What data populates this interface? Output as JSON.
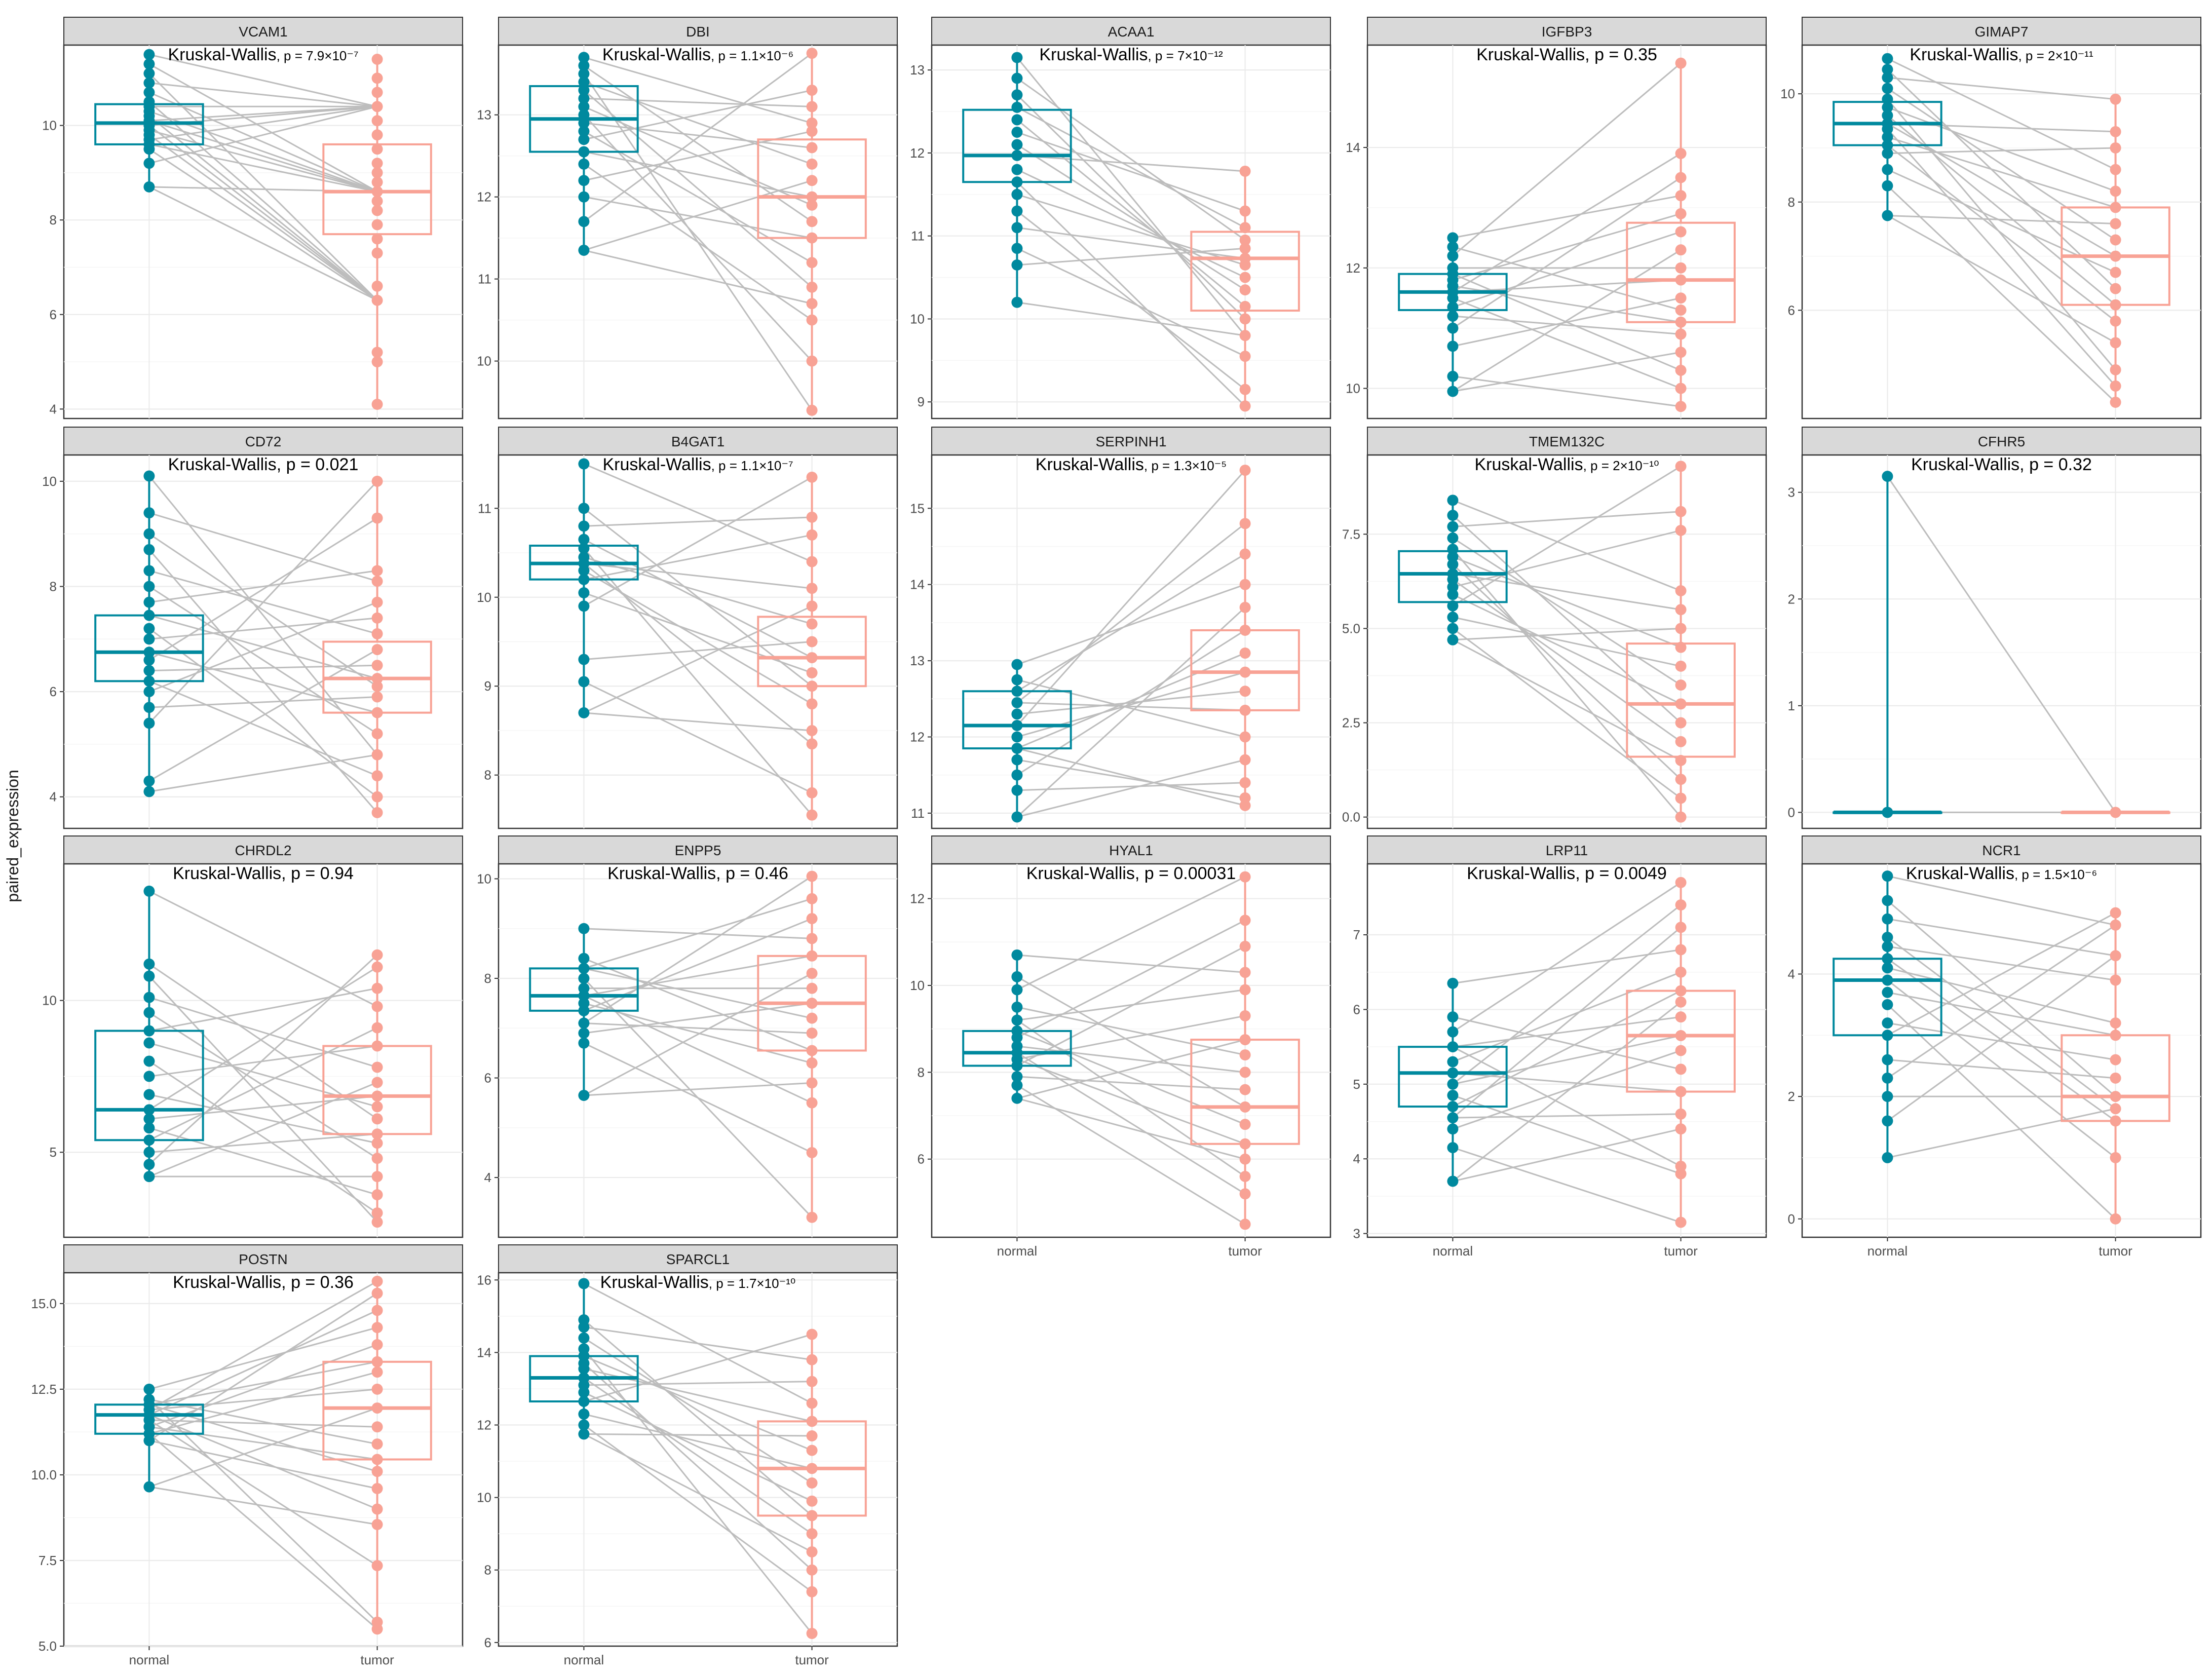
{
  "figure": {
    "y_axis_title": "paired_expression",
    "group_colors": {
      "normal": "#00899e",
      "tumor": "#f8a295"
    },
    "pair_line_color": "#bdbdbd",
    "test_name": "Kruskal-Wallis",
    "p_prefix": ", p = "
  },
  "chart_data": [
    {
      "type": "box",
      "gene": "VCAM1",
      "p_value": "7.9×10⁻⁷",
      "p_small": true,
      "ylim": [
        3.8,
        11.7
      ],
      "yticks": [
        4,
        6,
        8,
        10
      ],
      "categories": [
        "normal",
        "tumor"
      ],
      "normal": {
        "q1": 9.6,
        "median": 10.05,
        "q3": 10.45,
        "min": 8.7,
        "max": 11.5,
        "points": [
          8.7,
          9.2,
          9.5,
          9.6,
          9.7,
          9.8,
          9.9,
          10.0,
          10.0,
          10.1,
          10.2,
          10.3,
          10.4,
          10.5,
          10.7,
          10.9,
          11.1,
          11.3,
          11.5
        ]
      },
      "tumor": {
        "q1": 7.7,
        "median": 8.6,
        "q3": 9.6,
        "min": 4.1,
        "max": 11.4,
        "points": [
          4.1,
          5.0,
          5.2,
          6.3,
          6.6,
          7.3,
          7.6,
          7.9,
          8.2,
          8.4,
          8.6,
          8.8,
          9.0,
          9.2,
          9.5,
          9.8,
          10.1,
          10.4,
          10.7,
          11.0,
          11.4
        ]
      }
    },
    {
      "type": "box",
      "gene": "DBI",
      "p_value": "1.1×10⁻⁶",
      "p_small": true,
      "ylim": [
        9.3,
        13.85
      ],
      "yticks": [
        10,
        11,
        12,
        13
      ],
      "categories": [
        "normal",
        "tumor"
      ],
      "normal": {
        "q1": 12.55,
        "median": 12.95,
        "q3": 13.35,
        "min": 11.35,
        "max": 13.7,
        "points": [
          11.35,
          11.7,
          12.0,
          12.2,
          12.4,
          12.55,
          12.7,
          12.8,
          12.9,
          13.0,
          13.1,
          13.2,
          13.3,
          13.4,
          13.5,
          13.6,
          13.7
        ]
      },
      "tumor": {
        "q1": 11.5,
        "median": 12.0,
        "q3": 12.7,
        "min": 9.4,
        "max": 13.75,
        "points": [
          9.4,
          10.0,
          10.5,
          10.7,
          10.9,
          11.2,
          11.5,
          11.7,
          11.9,
          12.0,
          12.2,
          12.4,
          12.6,
          12.8,
          12.9,
          13.1,
          13.3,
          13.75
        ]
      }
    },
    {
      "type": "box",
      "gene": "ACAA1",
      "p_value": "7×10⁻¹²",
      "p_small": true,
      "ylim": [
        8.8,
        13.3
      ],
      "yticks": [
        9,
        10,
        11,
        12,
        13
      ],
      "categories": [
        "normal",
        "tumor"
      ],
      "normal": {
        "q1": 11.65,
        "median": 11.97,
        "q3": 12.52,
        "min": 10.2,
        "max": 13.15,
        "points": [
          10.2,
          10.65,
          10.85,
          11.1,
          11.3,
          11.5,
          11.65,
          11.8,
          11.97,
          12.1,
          12.25,
          12.4,
          12.55,
          12.7,
          12.9,
          13.15
        ]
      },
      "tumor": {
        "q1": 10.1,
        "median": 10.73,
        "q3": 11.05,
        "min": 8.95,
        "max": 11.78,
        "points": [
          8.95,
          9.15,
          9.55,
          9.8,
          10.0,
          10.15,
          10.35,
          10.5,
          10.65,
          10.73,
          10.85,
          10.95,
          11.1,
          11.3,
          11.78
        ]
      }
    },
    {
      "type": "box",
      "gene": "IGFBP3",
      "p_value": "0.35",
      "p_small": false,
      "ylim": [
        9.5,
        15.7
      ],
      "yticks": [
        10,
        12,
        14
      ],
      "categories": [
        "normal",
        "tumor"
      ],
      "normal": {
        "q1": 11.3,
        "median": 11.6,
        "q3": 11.9,
        "min": 9.95,
        "max": 12.5,
        "points": [
          9.95,
          10.2,
          10.7,
          11.0,
          11.2,
          11.35,
          11.5,
          11.6,
          11.7,
          11.8,
          11.9,
          12.0,
          12.2,
          12.35,
          12.5
        ]
      },
      "tumor": {
        "q1": 11.1,
        "median": 11.8,
        "q3": 12.75,
        "min": 9.7,
        "max": 15.4,
        "points": [
          9.7,
          10.0,
          10.3,
          10.6,
          10.9,
          11.1,
          11.3,
          11.5,
          11.8,
          12.0,
          12.3,
          12.6,
          12.9,
          13.2,
          13.5,
          13.9,
          15.4
        ]
      }
    },
    {
      "type": "box",
      "gene": "GIMAP7",
      "p_value": "2×10⁻¹¹",
      "p_small": true,
      "ylim": [
        4.0,
        10.9
      ],
      "yticks": [
        6,
        8,
        10
      ],
      "categories": [
        "normal",
        "tumor"
      ],
      "normal": {
        "q1": 9.05,
        "median": 9.45,
        "q3": 9.85,
        "min": 7.75,
        "max": 10.65,
        "points": [
          7.75,
          8.3,
          8.6,
          8.9,
          9.05,
          9.2,
          9.35,
          9.45,
          9.6,
          9.75,
          9.9,
          10.1,
          10.3,
          10.45,
          10.65
        ]
      },
      "tumor": {
        "q1": 6.1,
        "median": 7.0,
        "q3": 7.9,
        "min": 4.3,
        "max": 9.9,
        "points": [
          4.3,
          4.6,
          4.9,
          5.4,
          5.8,
          6.1,
          6.4,
          6.7,
          7.0,
          7.3,
          7.6,
          7.9,
          8.2,
          8.6,
          9.0,
          9.3,
          9.9
        ]
      }
    },
    {
      "type": "box",
      "gene": "CD72",
      "p_value": "0.021",
      "p_small": false,
      "ylim": [
        3.4,
        10.5
      ],
      "yticks": [
        4,
        6,
        8,
        10
      ],
      "categories": [
        "normal",
        "tumor"
      ],
      "normal": {
        "q1": 6.2,
        "median": 6.75,
        "q3": 7.45,
        "min": 4.1,
        "max": 10.1,
        "points": [
          4.1,
          4.3,
          5.4,
          5.7,
          6.0,
          6.2,
          6.4,
          6.6,
          6.75,
          7.0,
          7.2,
          7.45,
          7.7,
          8.0,
          8.3,
          8.7,
          9.0,
          9.4,
          10.1
        ]
      },
      "tumor": {
        "q1": 5.6,
        "median": 6.25,
        "q3": 6.95,
        "min": 3.7,
        "max": 10.0,
        "points": [
          3.7,
          4.0,
          4.4,
          4.8,
          5.2,
          5.6,
          5.9,
          6.1,
          6.25,
          6.5,
          6.8,
          7.1,
          7.4,
          7.7,
          8.1,
          8.3,
          9.3,
          10.0
        ]
      }
    },
    {
      "type": "box",
      "gene": "B4GAT1",
      "p_value": "1.1×10⁻⁷",
      "p_small": true,
      "ylim": [
        7.4,
        11.6
      ],
      "yticks": [
        8,
        9,
        10,
        11
      ],
      "categories": [
        "normal",
        "tumor"
      ],
      "normal": {
        "q1": 10.2,
        "median": 10.38,
        "q3": 10.58,
        "min": 8.7,
        "max": 11.5,
        "points": [
          8.7,
          9.05,
          9.3,
          9.9,
          10.05,
          10.2,
          10.3,
          10.38,
          10.45,
          10.55,
          10.65,
          10.8,
          11.0,
          11.5
        ]
      },
      "tumor": {
        "q1": 9.0,
        "median": 9.32,
        "q3": 9.78,
        "min": 7.55,
        "max": 11.35,
        "points": [
          7.55,
          7.8,
          8.35,
          8.5,
          8.8,
          9.0,
          9.15,
          9.32,
          9.5,
          9.7,
          9.9,
          10.1,
          10.4,
          10.7,
          10.9,
          11.35
        ]
      }
    },
    {
      "type": "box",
      "gene": "SERPINH1",
      "p_value": "1.3×10⁻⁵",
      "p_small": true,
      "ylim": [
        10.8,
        15.7
      ],
      "yticks": [
        11,
        12,
        13,
        14,
        15
      ],
      "categories": [
        "normal",
        "tumor"
      ],
      "normal": {
        "q1": 11.85,
        "median": 12.15,
        "q3": 12.6,
        "min": 10.95,
        "max": 12.95,
        "points": [
          10.95,
          11.3,
          11.5,
          11.7,
          11.85,
          12.0,
          12.15,
          12.3,
          12.45,
          12.6,
          12.75,
          12.95
        ]
      },
      "tumor": {
        "q1": 12.35,
        "median": 12.85,
        "q3": 13.4,
        "min": 11.1,
        "max": 15.5,
        "points": [
          11.1,
          11.2,
          11.4,
          11.7,
          12.0,
          12.35,
          12.6,
          12.85,
          13.1,
          13.4,
          13.7,
          14.0,
          14.4,
          14.8,
          15.5
        ]
      }
    },
    {
      "type": "box",
      "gene": "TMEM132C",
      "p_value": "2×10⁻¹⁰",
      "p_small": true,
      "ylim": [
        -0.3,
        9.6
      ],
      "yticks": [
        0.0,
        2.5,
        5.0,
        7.5
      ],
      "tick_decimals": 1,
      "categories": [
        "normal",
        "tumor"
      ],
      "normal": {
        "q1": 5.7,
        "median": 6.45,
        "q3": 7.05,
        "min": 4.7,
        "max": 8.4,
        "points": [
          4.7,
          5.0,
          5.3,
          5.6,
          5.9,
          6.1,
          6.3,
          6.45,
          6.7,
          6.9,
          7.1,
          7.4,
          7.7,
          8.0,
          8.4
        ]
      },
      "tumor": {
        "q1": 1.6,
        "median": 3.0,
        "q3": 4.6,
        "min": 0.0,
        "max": 9.3,
        "points": [
          0.0,
          0.5,
          1.0,
          1.5,
          2.0,
          2.5,
          3.0,
          3.5,
          4.0,
          4.5,
          5.0,
          5.5,
          6.0,
          7.6,
          8.1,
          9.3
        ]
      }
    },
    {
      "type": "box",
      "gene": "CFHR5",
      "p_value": "0.32",
      "p_small": false,
      "ylim": [
        -0.15,
        3.35
      ],
      "yticks": [
        0,
        1,
        2,
        3
      ],
      "categories": [
        "normal",
        "tumor"
      ],
      "normal": {
        "q1": 0.0,
        "median": 0.0,
        "q3": 0.0,
        "min": 0.0,
        "max": 3.15,
        "points": [
          0.0,
          3.15
        ]
      },
      "tumor": {
        "q1": 0.0,
        "median": 0.0,
        "q3": 0.0,
        "min": 0.0,
        "max": 0.0,
        "points": [
          0.0
        ]
      }
    },
    {
      "type": "box",
      "gene": "CHRDL2",
      "p_value": "0.94",
      "p_small": false,
      "ylim": [
        2.2,
        14.5
      ],
      "yticks": [
        5,
        10
      ],
      "categories": [
        "normal",
        "tumor"
      ],
      "normal": {
        "q1": 5.4,
        "median": 6.4,
        "q3": 9.0,
        "min": 4.2,
        "max": 13.6,
        "points": [
          4.2,
          4.6,
          5.0,
          5.4,
          5.8,
          6.1,
          6.4,
          6.9,
          7.5,
          8.0,
          8.6,
          9.0,
          9.6,
          10.1,
          10.8,
          11.2,
          13.6
        ]
      },
      "tumor": {
        "q1": 5.6,
        "median": 6.85,
        "q3": 8.5,
        "min": 2.7,
        "max": 11.5,
        "points": [
          2.7,
          3.0,
          3.6,
          4.2,
          4.8,
          5.3,
          5.6,
          6.1,
          6.5,
          6.85,
          7.3,
          7.8,
          8.5,
          9.1,
          9.8,
          10.4,
          11.1,
          11.5
        ]
      }
    },
    {
      "type": "box",
      "gene": "ENPP5",
      "p_value": "0.46",
      "p_small": false,
      "ylim": [
        2.8,
        10.3
      ],
      "yticks": [
        4,
        6,
        8,
        10
      ],
      "categories": [
        "normal",
        "tumor"
      ],
      "normal": {
        "q1": 7.35,
        "median": 7.65,
        "q3": 8.2,
        "min": 5.65,
        "max": 9.0,
        "points": [
          5.65,
          6.7,
          6.9,
          7.1,
          7.35,
          7.5,
          7.65,
          7.8,
          8.0,
          8.2,
          8.4,
          9.0
        ]
      },
      "tumor": {
        "q1": 6.55,
        "median": 7.5,
        "q3": 8.45,
        "min": 3.2,
        "max": 10.05,
        "points": [
          3.2,
          4.5,
          5.5,
          5.9,
          6.3,
          6.55,
          6.9,
          7.2,
          7.5,
          7.8,
          8.1,
          8.45,
          8.8,
          9.2,
          9.6,
          10.05
        ]
      }
    },
    {
      "type": "box",
      "gene": "HYAL1",
      "p_value": "0.00031",
      "p_small": false,
      "ylim": [
        4.2,
        12.8
      ],
      "yticks": [
        6,
        8,
        10,
        12
      ],
      "categories": [
        "normal",
        "tumor"
      ],
      "normal": {
        "q1": 8.15,
        "median": 8.45,
        "q3": 8.95,
        "min": 7.4,
        "max": 10.7,
        "points": [
          7.4,
          7.7,
          7.9,
          8.15,
          8.3,
          8.45,
          8.6,
          8.8,
          8.95,
          9.2,
          9.5,
          9.9,
          10.2,
          10.7
        ]
      },
      "tumor": {
        "q1": 6.35,
        "median": 7.2,
        "q3": 8.75,
        "min": 4.5,
        "max": 12.5,
        "points": [
          4.5,
          5.2,
          5.6,
          6.0,
          6.35,
          6.8,
          7.2,
          7.6,
          8.0,
          8.4,
          8.75,
          9.3,
          9.9,
          10.3,
          10.9,
          11.5,
          12.5
        ]
      }
    },
    {
      "type": "box",
      "gene": "LRP11",
      "p_value": "0.0049",
      "p_small": false,
      "ylim": [
        2.95,
        7.95
      ],
      "yticks": [
        3,
        4,
        5,
        6,
        7
      ],
      "categories": [
        "normal",
        "tumor"
      ],
      "normal": {
        "q1": 4.7,
        "median": 5.15,
        "q3": 5.5,
        "min": 3.7,
        "max": 6.35,
        "points": [
          3.7,
          4.15,
          4.4,
          4.55,
          4.7,
          4.85,
          5.0,
          5.15,
          5.3,
          5.5,
          5.7,
          5.9,
          6.35
        ]
      },
      "tumor": {
        "q1": 4.9,
        "median": 5.65,
        "q3": 6.25,
        "min": 3.15,
        "max": 7.7,
        "points": [
          3.15,
          3.8,
          3.9,
          4.4,
          4.6,
          4.9,
          5.2,
          5.45,
          5.65,
          5.9,
          6.1,
          6.25,
          6.5,
          6.8,
          7.1,
          7.4,
          7.7
        ]
      }
    },
    {
      "type": "box",
      "gene": "NCR1",
      "p_value": "1.5×10⁻⁶",
      "p_small": true,
      "ylim": [
        -0.3,
        5.8
      ],
      "yticks": [
        0,
        2,
        4
      ],
      "categories": [
        "normal",
        "tumor"
      ],
      "normal": {
        "q1": 3.0,
        "median": 3.9,
        "q3": 4.25,
        "min": 1.0,
        "max": 5.6,
        "points": [
          1.0,
          1.6,
          2.0,
          2.3,
          2.6,
          3.0,
          3.2,
          3.5,
          3.7,
          3.9,
          4.1,
          4.25,
          4.45,
          4.6,
          4.9,
          5.2,
          5.6
        ]
      },
      "tumor": {
        "q1": 1.6,
        "median": 2.0,
        "q3": 3.0,
        "min": 0.0,
        "max": 5.0,
        "points": [
          0.0,
          1.0,
          1.6,
          1.8,
          2.0,
          2.3,
          2.6,
          3.0,
          3.2,
          3.9,
          4.3,
          4.8,
          5.0
        ]
      }
    },
    {
      "type": "box",
      "gene": "POSTN",
      "p_value": "0.36",
      "p_small": false,
      "ylim": [
        5.0,
        15.9
      ],
      "yticks": [
        5.0,
        7.5,
        10.0,
        12.5,
        15.0
      ],
      "tick_decimals": 1,
      "categories": [
        "normal",
        "tumor"
      ],
      "normal": {
        "q1": 11.2,
        "median": 11.75,
        "q3": 12.05,
        "min": 9.65,
        "max": 12.5,
        "points": [
          9.65,
          11.0,
          11.2,
          11.4,
          11.6,
          11.75,
          11.9,
          12.05,
          12.2,
          12.5
        ]
      },
      "tumor": {
        "q1": 10.45,
        "median": 11.95,
        "q3": 13.3,
        "min": 5.5,
        "max": 15.65,
        "points": [
          5.5,
          5.7,
          7.35,
          8.55,
          9.0,
          9.6,
          10.1,
          10.45,
          10.9,
          11.4,
          11.95,
          12.5,
          13.0,
          13.3,
          13.8,
          14.3,
          14.8,
          15.3,
          15.65
        ]
      }
    },
    {
      "type": "box",
      "gene": "SPARCL1",
      "p_value": "1.7×10⁻¹⁰",
      "p_small": true,
      "ylim": [
        5.9,
        16.2
      ],
      "yticks": [
        6,
        8,
        10,
        12,
        14,
        16
      ],
      "categories": [
        "normal",
        "tumor"
      ],
      "normal": {
        "q1": 12.65,
        "median": 13.3,
        "q3": 13.9,
        "min": 11.75,
        "max": 15.9,
        "points": [
          11.75,
          12.0,
          12.3,
          12.65,
          12.9,
          13.1,
          13.3,
          13.55,
          13.7,
          13.9,
          14.1,
          14.4,
          14.7,
          14.9,
          15.9
        ]
      },
      "tumor": {
        "q1": 9.5,
        "median": 10.8,
        "q3": 12.1,
        "min": 6.25,
        "max": 14.5,
        "points": [
          6.25,
          7.4,
          8.0,
          8.5,
          9.0,
          9.5,
          9.9,
          10.4,
          10.8,
          11.3,
          11.7,
          12.1,
          12.6,
          13.2,
          13.8,
          14.5
        ]
      }
    }
  ]
}
